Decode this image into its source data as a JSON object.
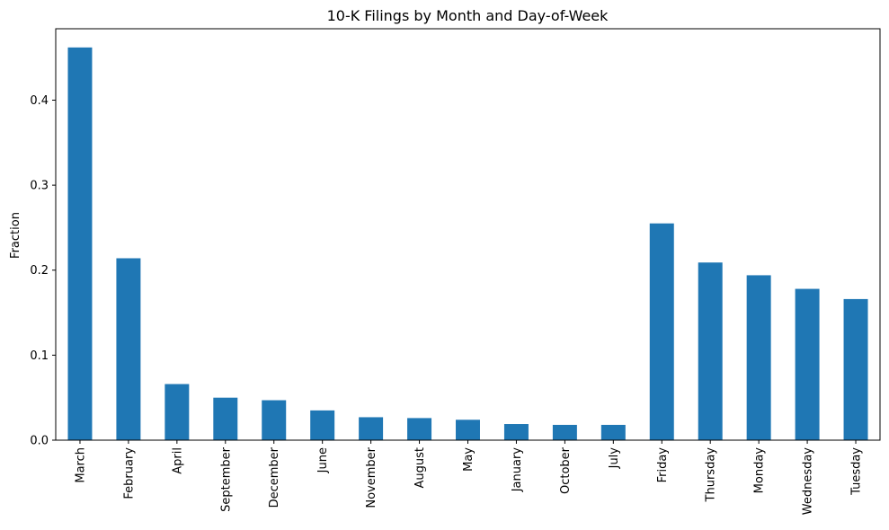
{
  "chart_data": {
    "type": "bar",
    "title": "10-K Filings by Month and Day-of-Week",
    "xlabel": "",
    "ylabel": "Fraction",
    "ylim": [
      0,
      0.484
    ],
    "yticks": [
      0.0,
      0.1,
      0.2,
      0.3,
      0.4
    ],
    "ytick_labels": [
      "0.0",
      "0.1",
      "0.2",
      "0.3",
      "0.4"
    ],
    "grid": false,
    "bar_color": "#1f77b4",
    "categories": [
      "March",
      "February",
      "April",
      "September",
      "December",
      "June",
      "November",
      "August",
      "May",
      "January",
      "October",
      "July",
      "Friday",
      "Thursday",
      "Monday",
      "Wednesday",
      "Tuesday"
    ],
    "values": [
      0.462,
      0.214,
      0.066,
      0.05,
      0.047,
      0.035,
      0.027,
      0.026,
      0.024,
      0.019,
      0.018,
      0.018,
      0.255,
      0.209,
      0.194,
      0.178,
      0.166
    ]
  }
}
